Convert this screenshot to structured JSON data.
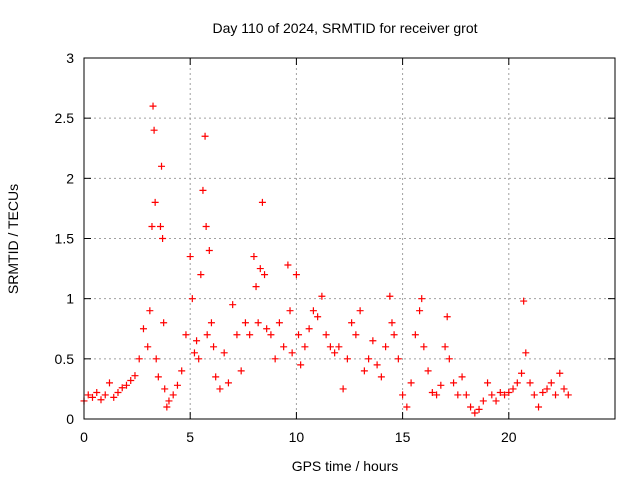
{
  "chart_data": {
    "type": "scatter",
    "title": "Day 110 of 2024, SRMTID for receiver grot",
    "xlabel": "GPS time / hours",
    "ylabel": "SRMTID / TECUs",
    "xlim": [
      0,
      25
    ],
    "ylim": [
      0,
      3
    ],
    "xticks": [
      0,
      5,
      10,
      15,
      20
    ],
    "xtick_labels": [
      "0",
      "5",
      "10",
      "15",
      "20"
    ],
    "yticks": [
      0,
      0.5,
      1,
      1.5,
      2,
      2.5,
      3
    ],
    "ytick_labels": [
      "0",
      "0.5",
      "1",
      "1.5",
      "2",
      "2.5",
      "3"
    ],
    "grid": true,
    "marker": "+",
    "series": [
      {
        "name": "SRMTID",
        "color": "#ff0000",
        "x": [
          0.0,
          0.2,
          0.4,
          0.6,
          0.8,
          1.0,
          1.2,
          1.4,
          1.6,
          1.8,
          2.0,
          2.2,
          2.4,
          2.6,
          2.8,
          3.0,
          3.1,
          3.2,
          3.25,
          3.3,
          3.35,
          3.4,
          3.5,
          3.6,
          3.65,
          3.7,
          3.75,
          3.8,
          3.9,
          4.0,
          4.2,
          4.4,
          4.6,
          4.8,
          5.0,
          5.1,
          5.2,
          5.3,
          5.4,
          5.5,
          5.6,
          5.7,
          5.75,
          5.8,
          5.9,
          6.0,
          6.1,
          6.2,
          6.4,
          6.6,
          6.8,
          7.0,
          7.2,
          7.4,
          7.6,
          7.8,
          8.0,
          8.1,
          8.2,
          8.3,
          8.4,
          8.5,
          8.6,
          8.8,
          9.0,
          9.2,
          9.4,
          9.6,
          9.7,
          9.8,
          10.0,
          10.1,
          10.2,
          10.4,
          10.6,
          10.8,
          11.0,
          11.2,
          11.4,
          11.6,
          11.8,
          12.0,
          12.2,
          12.4,
          12.6,
          12.8,
          13.0,
          13.2,
          13.4,
          13.6,
          13.8,
          14.0,
          14.2,
          14.4,
          14.5,
          14.6,
          14.8,
          15.0,
          15.2,
          15.4,
          15.6,
          15.8,
          15.9,
          16.0,
          16.2,
          16.4,
          16.6,
          16.8,
          17.0,
          17.1,
          17.2,
          17.4,
          17.6,
          17.8,
          18.0,
          18.2,
          18.4,
          18.6,
          18.8,
          19.0,
          19.2,
          19.4,
          19.6,
          19.8,
          20.0,
          20.2,
          20.4,
          20.6,
          20.7,
          20.8,
          21.0,
          21.2,
          21.4,
          21.6,
          21.8,
          22.0,
          22.2,
          22.4,
          22.6,
          22.8
        ],
        "y": [
          0.15,
          0.2,
          0.18,
          0.22,
          0.16,
          0.2,
          0.3,
          0.18,
          0.22,
          0.26,
          0.28,
          0.32,
          0.36,
          0.5,
          0.75,
          0.6,
          0.9,
          1.6,
          2.6,
          2.4,
          1.8,
          0.5,
          0.35,
          1.6,
          2.1,
          1.5,
          0.8,
          0.25,
          0.1,
          0.15,
          0.2,
          0.28,
          0.4,
          0.7,
          1.35,
          1.0,
          0.55,
          0.65,
          0.5,
          1.2,
          1.9,
          2.35,
          1.6,
          0.7,
          1.4,
          0.8,
          0.6,
          0.35,
          0.25,
          0.55,
          0.3,
          0.95,
          0.7,
          0.4,
          0.8,
          0.7,
          1.35,
          1.1,
          0.8,
          1.25,
          1.8,
          1.2,
          0.75,
          0.7,
          0.5,
          0.8,
          0.6,
          1.28,
          0.9,
          0.55,
          1.2,
          0.7,
          0.45,
          0.6,
          0.75,
          0.9,
          0.85,
          1.02,
          0.7,
          0.6,
          0.55,
          0.6,
          0.25,
          0.5,
          0.8,
          0.7,
          0.9,
          0.4,
          0.5,
          0.65,
          0.45,
          0.35,
          0.6,
          1.02,
          0.8,
          0.7,
          0.5,
          0.2,
          0.1,
          0.3,
          0.7,
          0.9,
          1.0,
          0.6,
          0.4,
          0.22,
          0.2,
          0.28,
          0.6,
          0.85,
          0.5,
          0.3,
          0.2,
          0.35,
          0.2,
          0.1,
          0.05,
          0.08,
          0.15,
          0.3,
          0.2,
          0.15,
          0.22,
          0.2,
          0.22,
          0.25,
          0.3,
          0.38,
          0.98,
          0.55,
          0.3,
          0.2,
          0.1,
          0.22,
          0.25,
          0.3,
          0.2,
          0.38,
          0.25,
          0.2
        ]
      }
    ]
  }
}
